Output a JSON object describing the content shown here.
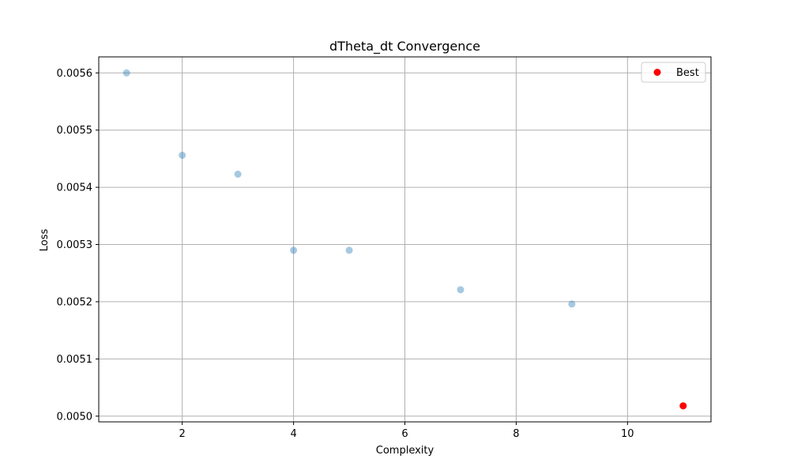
{
  "chart_data": {
    "type": "scatter",
    "title": "dTheta_dt Convergence",
    "xlabel": "Complexity",
    "ylabel": "Loss",
    "xlim": [
      0.5,
      11.5
    ],
    "ylim": [
      0.00499,
      0.005628
    ],
    "xticks": [
      2,
      4,
      6,
      8,
      10
    ],
    "xtick_labels": [
      "2",
      "4",
      "6",
      "8",
      "10"
    ],
    "yticks": [
      0.005,
      0.0051,
      0.0052,
      0.0053,
      0.0054,
      0.0055,
      0.0056
    ],
    "ytick_labels": [
      "0.0050",
      "0.0051",
      "0.0052",
      "0.0053",
      "0.0054",
      "0.0055",
      "0.0056"
    ],
    "grid": true,
    "legend_position": "top-right",
    "series": [
      {
        "x": [
          1,
          2,
          3,
          4,
          5,
          7,
          9
        ],
        "y": [
          0.0056,
          0.005456,
          0.005423,
          0.00529,
          0.00529,
          0.005221,
          0.005196
        ],
        "color": "#1f77b4",
        "alpha": 0.4
      },
      {
        "name": "Best",
        "x": [
          11
        ],
        "y": [
          0.005018
        ],
        "color": "#ff0000",
        "alpha": 1.0
      }
    ]
  }
}
